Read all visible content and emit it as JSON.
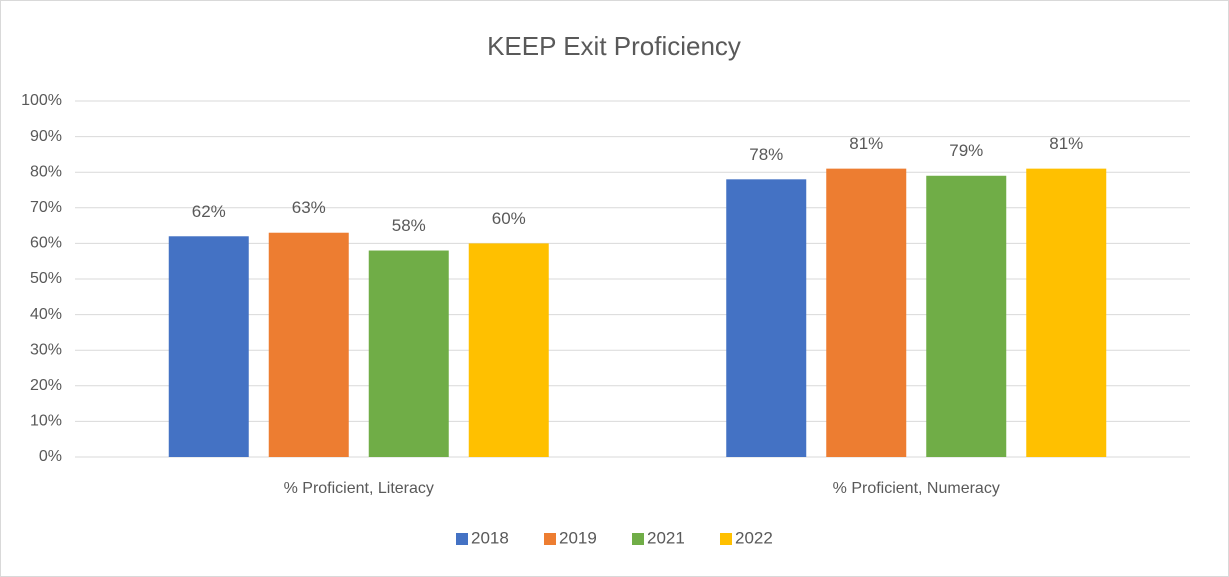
{
  "chart_data": {
    "type": "bar",
    "title": "KEEP Exit Proficiency",
    "categories": [
      "% Proficient, Literacy",
      "% Proficient, Numeracy"
    ],
    "series": [
      {
        "name": "2018",
        "color": "#4472c4",
        "values": [
          62,
          78
        ],
        "value_labels": [
          "62%",
          "78%"
        ]
      },
      {
        "name": "2019",
        "color": "#ed7d31",
        "values": [
          63,
          81
        ],
        "value_labels": [
          "63%",
          "81%"
        ]
      },
      {
        "name": "2021",
        "color": "#70ad47",
        "values": [
          58,
          79
        ],
        "value_labels": [
          "58%",
          "79%"
        ]
      },
      {
        "name": "2022",
        "color": "#ffc000",
        "values": [
          60,
          81
        ],
        "value_labels": [
          "60%",
          "81%"
        ]
      }
    ],
    "ylim": [
      0,
      100
    ],
    "yticks": [
      {
        "value": 0,
        "label": "0%"
      },
      {
        "value": 10,
        "label": "10%"
      },
      {
        "value": 20,
        "label": "20%"
      },
      {
        "value": 30,
        "label": "30%"
      },
      {
        "value": 40,
        "label": "40%"
      },
      {
        "value": 50,
        "label": "50%"
      },
      {
        "value": 60,
        "label": "60%"
      },
      {
        "value": 70,
        "label": "70%"
      },
      {
        "value": 80,
        "label": "80%"
      },
      {
        "value": 90,
        "label": "90%"
      },
      {
        "value": 100,
        "label": "100%"
      }
    ],
    "grid": true,
    "legend": "bottom"
  }
}
